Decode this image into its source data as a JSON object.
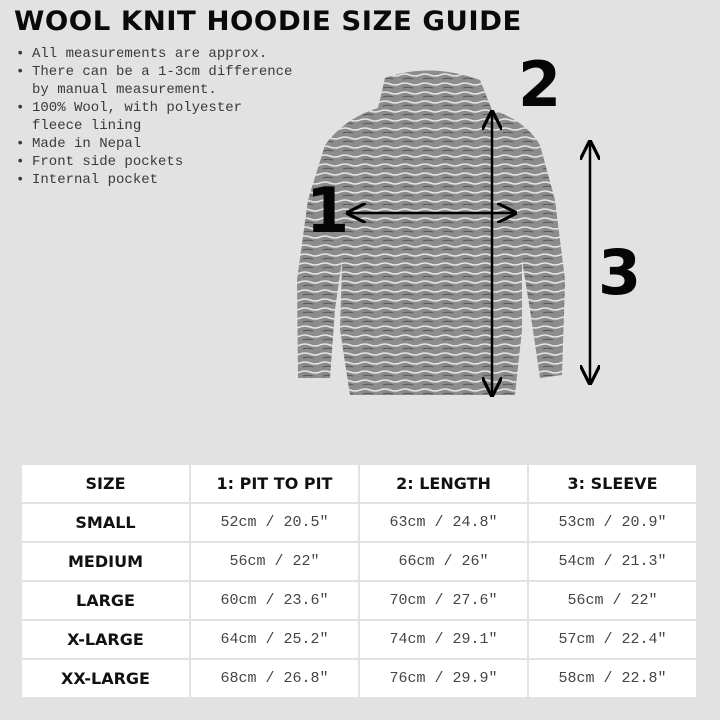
{
  "title": "WOOL KNIT HOODIE SIZE GUIDE",
  "notes": [
    "All measurements are approx.",
    "There can be a 1-3cm difference\nby manual measurement.",
    "100% Wool, with polyester\nfleece lining",
    "Made in Nepal",
    "Front side pockets",
    "Internal pocket"
  ],
  "diagram": {
    "markers": [
      "1",
      "2",
      "3"
    ],
    "garment_color": "#8c8c8c"
  },
  "table": {
    "headers": [
      "SIZE",
      "1: PIT TO PIT",
      "2: LENGTH",
      "3: SLEEVE"
    ],
    "rows": [
      [
        "SMALL",
        "52cm / 20.5\"",
        "63cm / 24.8\"",
        "53cm / 20.9\""
      ],
      [
        "MEDIUM",
        "56cm / 22\"",
        "66cm / 26\"",
        "54cm / 21.3\""
      ],
      [
        "LARGE",
        "60cm / 23.6\"",
        "70cm / 27.6\"",
        "56cm / 22\""
      ],
      [
        "X-LARGE",
        "64cm / 25.2\"",
        "74cm / 29.1\"",
        "57cm / 22.4\""
      ],
      [
        "XX-LARGE",
        "68cm / 26.8\"",
        "76cm / 29.9\"",
        "58cm / 22.8\""
      ]
    ]
  }
}
